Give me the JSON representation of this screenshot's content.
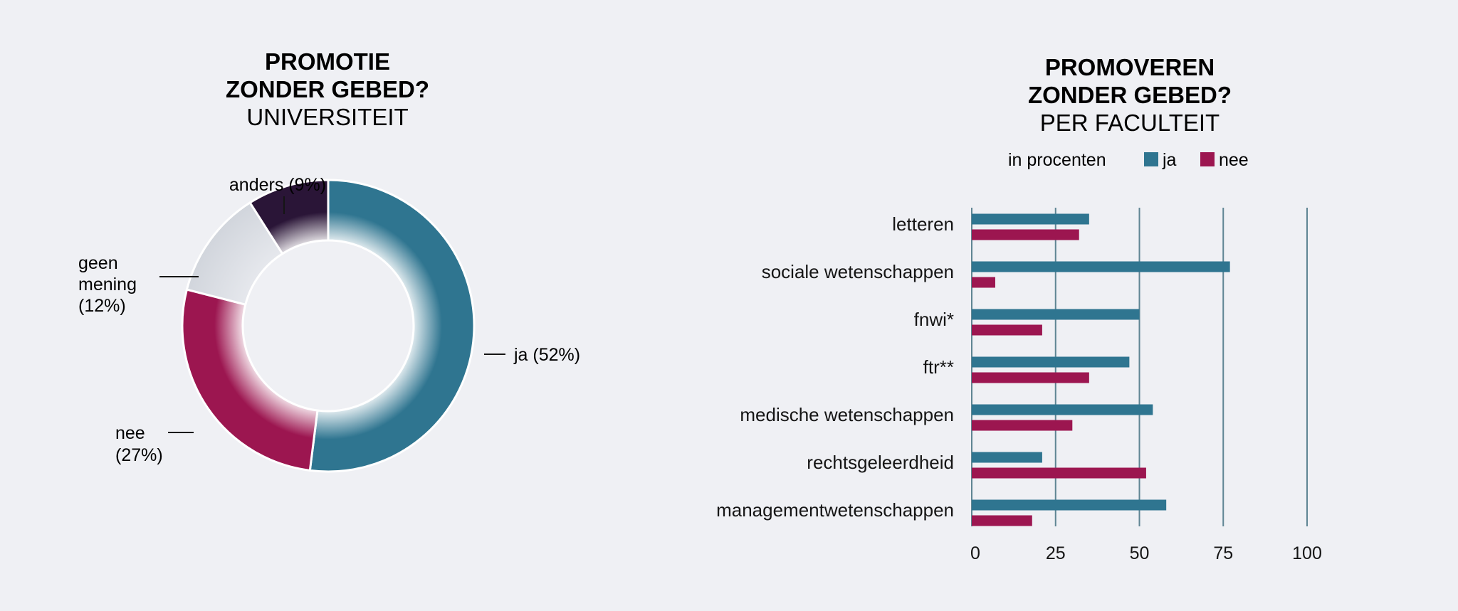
{
  "chart_data": [
    {
      "type": "pie",
      "title": "PROMOTIE",
      "title_line2": "ZONDER GEBED?",
      "subtitle": "UNIVERSITEIT",
      "slices": [
        {
          "key": "ja",
          "label": "ja (52%)",
          "value": 52,
          "color": "#2f7590"
        },
        {
          "key": "nee",
          "label": "nee (27%)",
          "label_lines": [
            "nee",
            "(27%)"
          ],
          "value": 27,
          "color": "#9c1650"
        },
        {
          "key": "geen",
          "label": "geen mening (12%)",
          "label_lines": [
            "geen",
            "mening",
            "(12%)"
          ],
          "value": 12,
          "color": "#d4d8df"
        },
        {
          "key": "anders",
          "label": "anders (9%)",
          "value": 9,
          "color": "#2a1537"
        }
      ]
    },
    {
      "type": "bar",
      "orientation": "horizontal",
      "title": "PROMOVEREN",
      "title_line2": "ZONDER GEBED?",
      "subtitle": "PER FACULTEIT",
      "units_label": "in procenten",
      "legend": [
        {
          "name": "ja",
          "color": "#2f7590"
        },
        {
          "name": "nee",
          "color": "#9c1650"
        }
      ],
      "categories": [
        "letteren",
        "sociale wetenschappen",
        "fnwi*",
        "ftr**",
        "medische wetenschappen",
        "rechtsgeleerdheid",
        "managementwetenschappen"
      ],
      "series": [
        {
          "name": "ja",
          "color": "#2f7590",
          "values": [
            35,
            77,
            50,
            47,
            54,
            21,
            58
          ]
        },
        {
          "name": "nee",
          "color": "#9c1650",
          "values": [
            32,
            7,
            21,
            35,
            30,
            52,
            18
          ]
        }
      ],
      "xlim": [
        0,
        100
      ],
      "xticks": [
        0,
        25,
        50,
        75,
        100
      ],
      "grid": true
    }
  ]
}
